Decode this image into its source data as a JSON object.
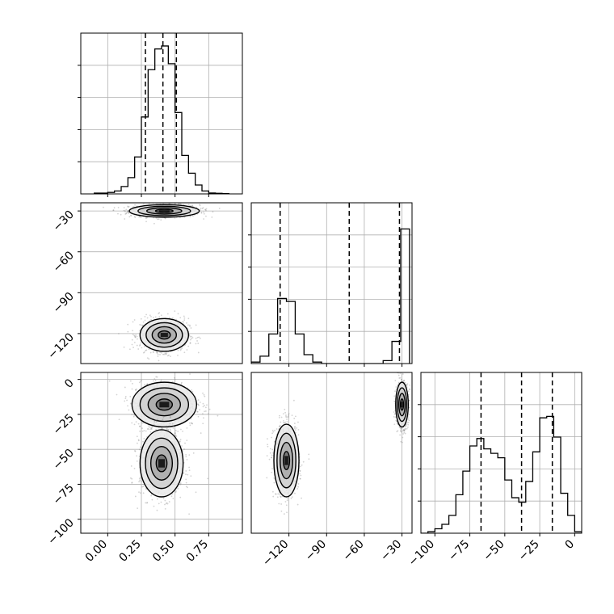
{
  "chart_data": [
    {
      "panel": "hist-1",
      "type": "bar",
      "title": "",
      "xlabel": "",
      "ylabel": "",
      "xlim": [
        -0.2,
        1.0
      ],
      "x_ticks": [
        0.0,
        0.25,
        0.5,
        0.75
      ],
      "x_tick_labels": [
        "0.00",
        "0.25",
        "0.50",
        "0.75"
      ],
      "grid": true,
      "bin_edges": [
        -0.1,
        -0.05,
        0.0,
        0.05,
        0.1,
        0.15,
        0.2,
        0.25,
        0.3,
        0.35,
        0.4,
        0.45,
        0.5,
        0.55,
        0.6,
        0.65,
        0.7,
        0.75,
        0.8,
        0.85,
        0.9
      ],
      "values": [
        0.005,
        0.005,
        0.01,
        0.02,
        0.05,
        0.11,
        0.25,
        0.52,
        0.84,
        0.98,
        1.0,
        0.88,
        0.55,
        0.26,
        0.14,
        0.06,
        0.02,
        0.006,
        0.004,
        0.002
      ],
      "quantile_lines": [
        0.28,
        0.41,
        0.51
      ]
    },
    {
      "panel": "hist-2",
      "type": "bar",
      "title": "",
      "xlabel": "",
      "ylabel": "",
      "xlim": [
        -150,
        -22
      ],
      "x_ticks": [
        -120,
        -90,
        -60,
        -30
      ],
      "x_tick_labels": [
        "−120",
        "−90",
        "−60",
        "−30"
      ],
      "grid": true,
      "bin_edges": [
        -150,
        -143,
        -136,
        -129,
        -122,
        -115,
        -108,
        -101,
        -94,
        -87,
        -80,
        -73,
        -66,
        -59,
        -52,
        -45,
        -38,
        -31,
        -24
      ],
      "values": [
        0.01,
        0.05,
        0.2,
        0.44,
        0.42,
        0.2,
        0.06,
        0.01,
        0.0,
        0.0,
        0.0,
        0.0,
        0.0,
        0.0,
        0.0,
        0.02,
        0.15,
        0.91
      ],
      "quantile_lines": [
        -127,
        -72,
        -32
      ]
    },
    {
      "panel": "hist-3",
      "type": "bar",
      "title": "",
      "xlabel": "",
      "ylabel": "",
      "xlim": [
        -110,
        5
      ],
      "x_ticks": [
        -100,
        -75,
        -50,
        -25,
        0
      ],
      "x_tick_labels": [
        "−100",
        "−75",
        "−50",
        "−25",
        "0"
      ],
      "grid": true,
      "bin_edges": [
        -110,
        -105,
        -100,
        -95,
        -90,
        -85,
        -80,
        -75,
        -70,
        -65,
        -60,
        -55,
        -50,
        -45,
        -40,
        -35,
        -30,
        -25,
        -20,
        -15,
        -10,
        -5,
        0,
        5
      ],
      "values": [
        0.0,
        0.01,
        0.03,
        0.06,
        0.12,
        0.26,
        0.42,
        0.59,
        0.64,
        0.57,
        0.54,
        0.51,
        0.36,
        0.24,
        0.21,
        0.35,
        0.55,
        0.78,
        0.79,
        0.65,
        0.27,
        0.12,
        0.01
      ],
      "quantile_lines": [
        -67,
        -38,
        -16
      ]
    },
    {
      "panel": "scatter-2-1",
      "type": "scatter",
      "title": "",
      "xlabel": "",
      "ylabel": "",
      "xlim": [
        -0.2,
        1.0
      ],
      "ylim": [
        -142,
        -24
      ],
      "y_ticks": [
        -120,
        -90,
        -60,
        -30
      ],
      "y_tick_labels": [
        "−120",
        "−90",
        "−60",
        "−30"
      ],
      "grid": true,
      "clusters": [
        {
          "center": [
            0.42,
            -30
          ],
          "spread": [
            0.13,
            2.3
          ],
          "share": 0.5
        },
        {
          "center": [
            0.42,
            -121
          ],
          "spread": [
            0.09,
            6
          ],
          "share": 0.5
        }
      ]
    },
    {
      "panel": "scatter-3-1",
      "type": "scatter",
      "title": "",
      "xlabel": "",
      "ylabel": "",
      "xlim": [
        -0.2,
        1.0
      ],
      "ylim": [
        -110,
        5
      ],
      "x_ticks": [
        0.0,
        0.25,
        0.5,
        0.75
      ],
      "x_tick_labels": [
        "0.00",
        "0.25",
        "0.50",
        "0.75"
      ],
      "y_ticks": [
        -100,
        -75,
        -50,
        -25,
        0
      ],
      "y_tick_labels": [
        "−100",
        "−75",
        "−50",
        "−25",
        "0"
      ],
      "grid": true,
      "clusters": [
        {
          "center": [
            0.42,
            -18
          ],
          "spread": [
            0.12,
            8
          ],
          "share": 0.5
        },
        {
          "center": [
            0.4,
            -60
          ],
          "spread": [
            0.08,
            12
          ],
          "share": 0.5
        }
      ]
    },
    {
      "panel": "scatter-3-2",
      "type": "scatter",
      "title": "",
      "xlabel": "",
      "ylabel": "",
      "xlim": [
        -150,
        -22
      ],
      "ylim": [
        -110,
        5
      ],
      "x_ticks": [
        -120,
        -90,
        -60,
        -30
      ],
      "x_tick_labels": [
        "−120",
        "−90",
        "−60",
        "−30"
      ],
      "grid": true,
      "clusters": [
        {
          "center": [
            -30,
            -18
          ],
          "spread": [
            2.5,
            8
          ],
          "share": 0.5
        },
        {
          "center": [
            -122,
            -58
          ],
          "spread": [
            5,
            13
          ],
          "share": 0.5
        }
      ]
    }
  ],
  "colors": {
    "points": "#808080",
    "line": "#000000",
    "grid": "#b0b0b0"
  }
}
